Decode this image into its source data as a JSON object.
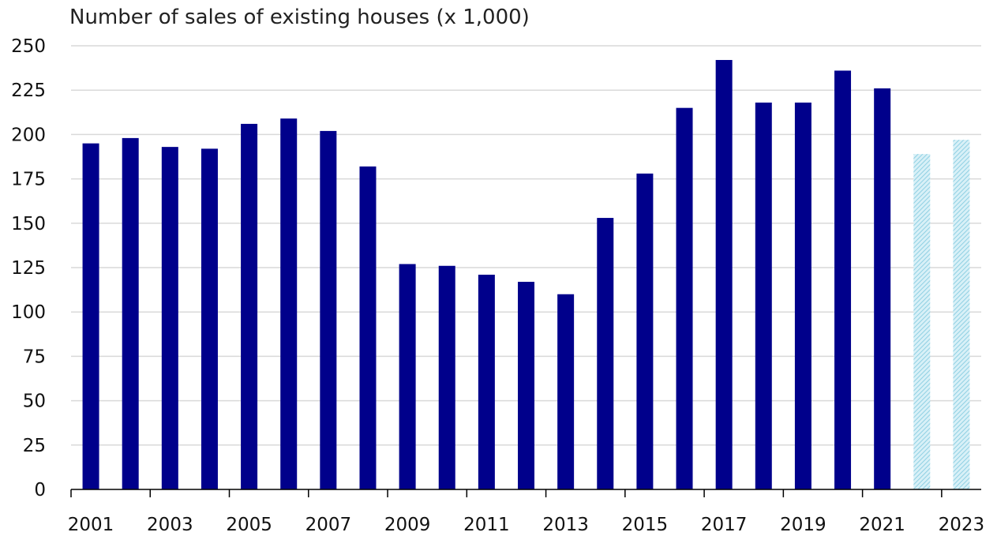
{
  "chart_data": {
    "type": "bar",
    "title": "Number of sales of existing houses (x 1,000)",
    "xlabel": "",
    "ylabel": "",
    "categories": [
      "2001",
      "2002",
      "2003",
      "2004",
      "2005",
      "2006",
      "2007",
      "2008",
      "2009",
      "2010",
      "2011",
      "2012",
      "2013",
      "2014",
      "2015",
      "2016",
      "2017",
      "2018",
      "2019",
      "2020",
      "2021",
      "2022",
      "2023"
    ],
    "x_tick_labels": [
      "2001",
      "2003",
      "2005",
      "2007",
      "2009",
      "2011",
      "2013",
      "2015",
      "2017",
      "2019",
      "2021",
      "2023"
    ],
    "values": [
      195,
      198,
      193,
      192,
      206,
      209,
      202,
      182,
      127,
      126,
      121,
      117,
      110,
      153,
      178,
      215,
      242,
      218,
      218,
      236,
      226,
      189,
      197
    ],
    "forecast_categories": [
      "2022",
      "2023"
    ],
    "ylim": [
      0,
      250
    ],
    "y_ticks": [
      0,
      25,
      50,
      75,
      100,
      125,
      150,
      175,
      200,
      225,
      250
    ],
    "grid": true,
    "legend": "none",
    "colors": {
      "actual": "#00008B",
      "forecast": "#A8DDEB",
      "grid": "#D9D9D9",
      "axis": "#000000"
    }
  }
}
